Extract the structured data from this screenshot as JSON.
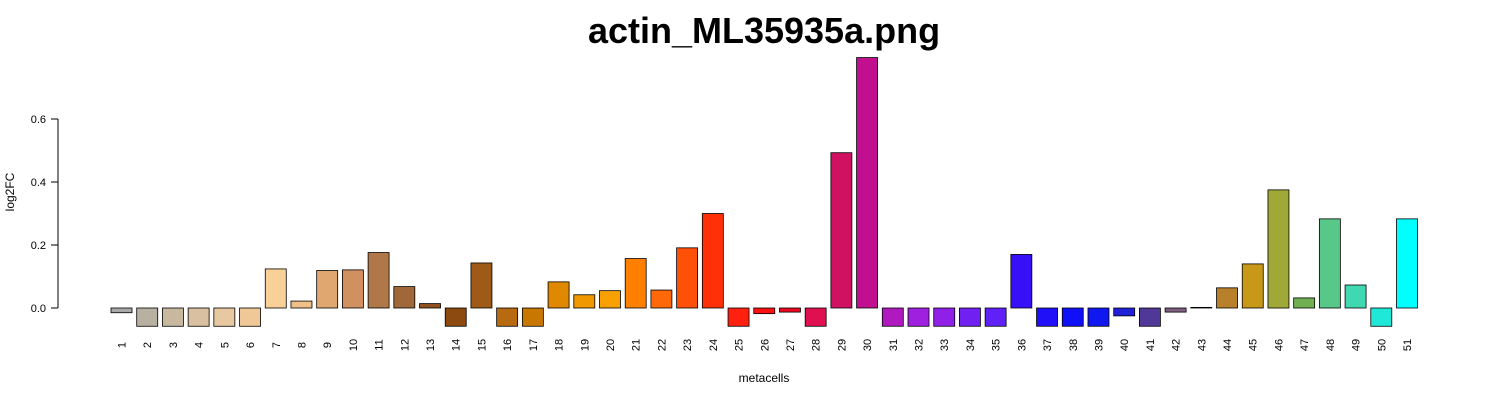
{
  "chart_data": {
    "type": "bar",
    "title": "actin_ML35935a.png",
    "xlabel": "metacells",
    "ylabel": "log2FC",
    "ylim": [
      -0.06,
      0.8
    ],
    "yticks": [
      "0.0",
      "0.2",
      "0.4",
      "0.6"
    ],
    "ytick_values": [
      0,
      0.2,
      0.4,
      0.6
    ],
    "grid": false,
    "legend": "none",
    "categories": [
      "1",
      "2",
      "3",
      "4",
      "5",
      "6",
      "7",
      "8",
      "9",
      "10",
      "11",
      "12",
      "13",
      "14",
      "15",
      "16",
      "17",
      "18",
      "19",
      "20",
      "21",
      "22",
      "23",
      "24",
      "25",
      "26",
      "27",
      "28",
      "29",
      "30",
      "31",
      "32",
      "33",
      "34",
      "35",
      "36",
      "37",
      "38",
      "39",
      "40",
      "41",
      "42",
      "43",
      "44",
      "45",
      "46",
      "47",
      "48",
      "49",
      "50",
      "51"
    ],
    "values": [
      -0.015,
      -0.058,
      -0.058,
      -0.058,
      -0.058,
      -0.058,
      0.124,
      0.022,
      0.119,
      0.121,
      0.176,
      0.068,
      0.014,
      -0.058,
      0.143,
      -0.058,
      -0.058,
      0.083,
      0.042,
      0.055,
      0.157,
      0.057,
      0.191,
      0.3,
      -0.058,
      -0.018,
      -0.013,
      -0.058,
      0.493,
      0.795,
      -0.058,
      -0.058,
      -0.058,
      -0.058,
      -0.058,
      0.17,
      -0.058,
      -0.058,
      -0.058,
      -0.025,
      -0.058,
      -0.013,
      0.002,
      0.064,
      0.14,
      0.375,
      0.032,
      0.283,
      0.073,
      -0.058,
      0.283
    ],
    "colors": [
      "#AAAAAA",
      "#B8B0A0",
      "#C8B8A0",
      "#D8C0A0",
      "#E8C8A0",
      "#F0C898",
      "#F8D098",
      "#F0C088",
      "#E0A870",
      "#D09060",
      "#B07848",
      "#A06838",
      "#905020",
      "#8C4A10",
      "#A05A18",
      "#B86A10",
      "#C87800",
      "#E08800",
      "#F09800",
      "#F8A000",
      "#FF8000",
      "#FF6808",
      "#FF5008",
      "#FF3008",
      "#FF2010",
      "#FF1010",
      "#F00820",
      "#E01050",
      "#D01060",
      "#C01090",
      "#B018C0",
      "#A020E0",
      "#9020E8",
      "#7020F0",
      "#6020F8",
      "#3810F8",
      "#2010F8",
      "#1010F8",
      "#1018F0",
      "#2020D8",
      "#503898",
      "#806080",
      "#908070",
      "#B8802A",
      "#C89818",
      "#A0A838",
      "#70B050",
      "#58C888",
      "#40D8B0",
      "#20E8D8",
      "#00FFFF"
    ]
  }
}
